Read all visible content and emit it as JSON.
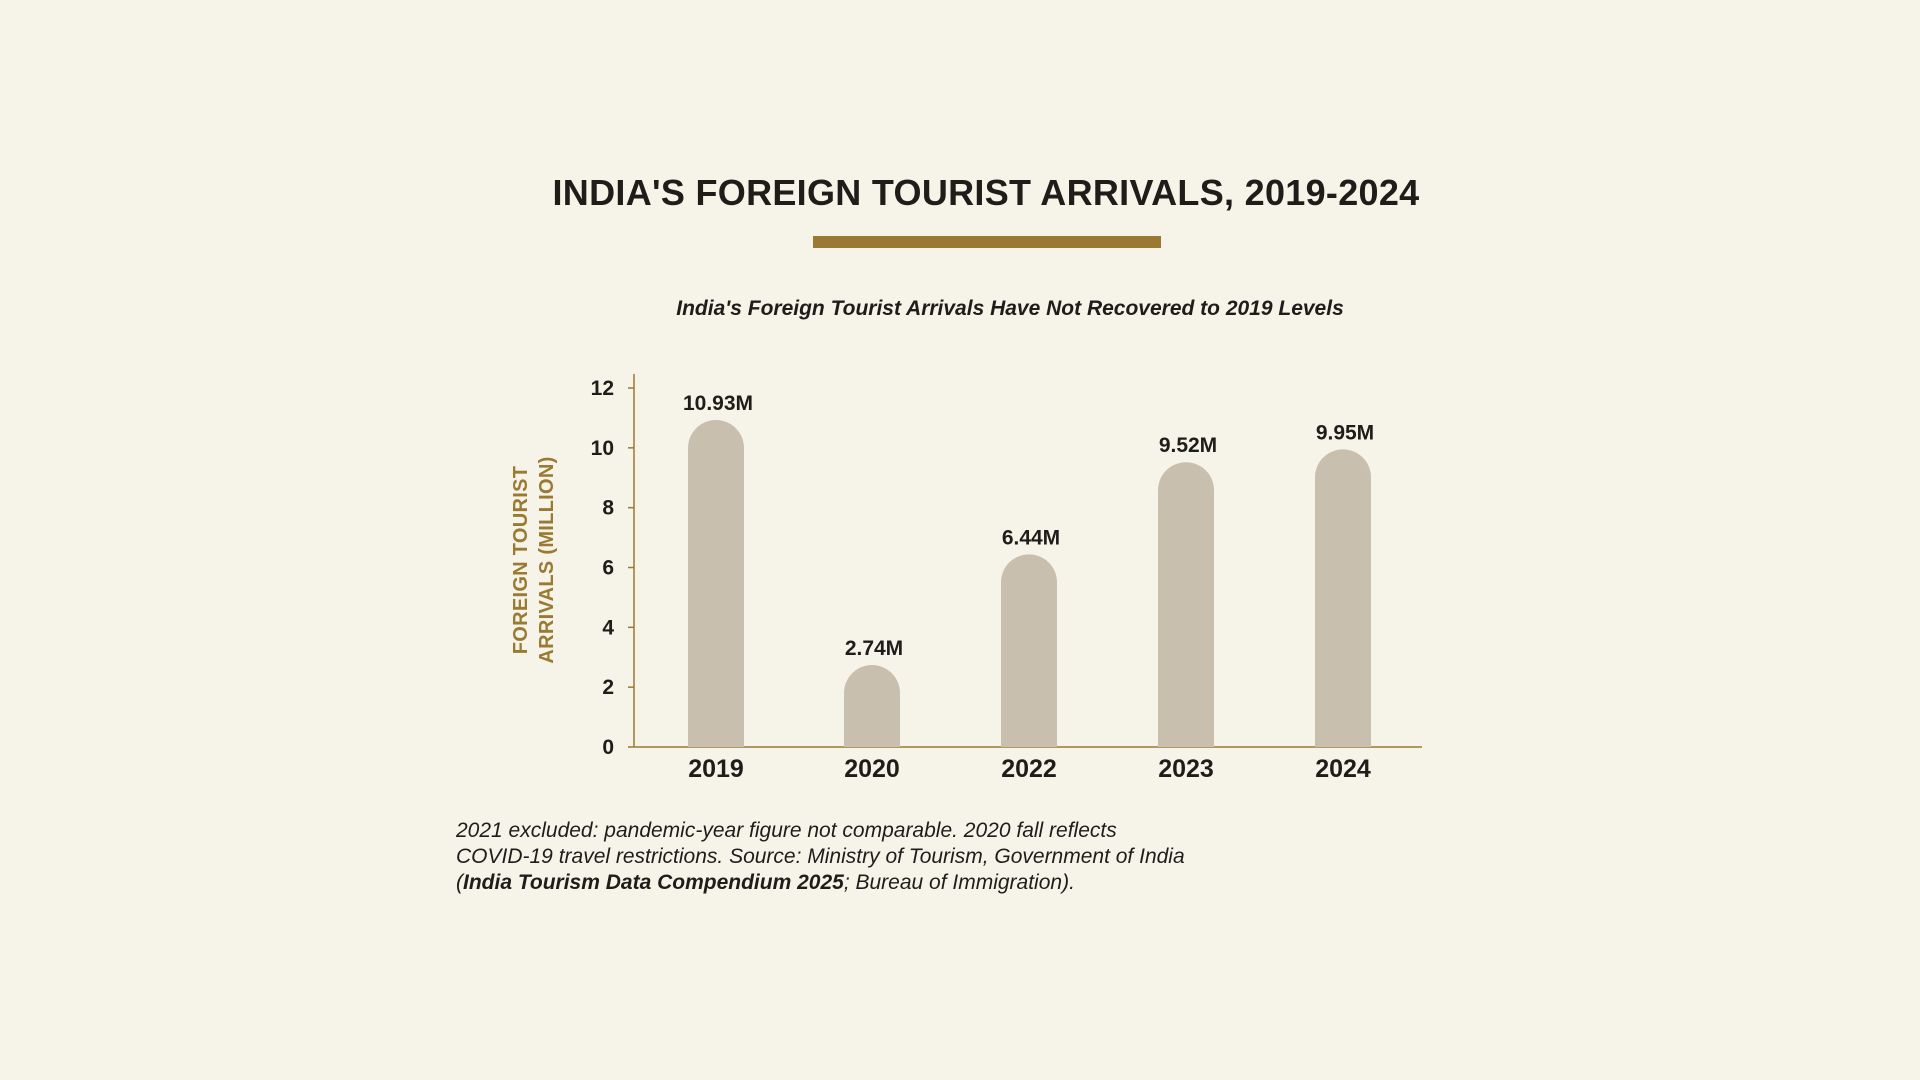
{
  "colors": {
    "background": "#f6f3e9",
    "accent": "#9a7a33",
    "bar": "#c8bfae",
    "text": "#1f1d1a"
  },
  "header": {
    "title": "INDIA'S FOREIGN TOURIST ARRIVALS, 2019-2024",
    "subtitle": "India's Foreign Tourist Arrivals Have Not Recovered to 2019 Levels"
  },
  "chart_data": {
    "type": "bar",
    "categories": [
      "2019",
      "2020",
      "2022",
      "2023",
      "2024"
    ],
    "values": [
      10.93,
      2.74,
      6.44,
      9.52,
      9.95
    ],
    "data_labels": [
      "10.93M",
      "2.74M",
      "6.44M",
      "9.52M",
      "9.95M"
    ],
    "title": "INDIA'S FOREIGN TOURIST ARRIVALS, 2019-2024",
    "subtitle": "India's Foreign Tourist Arrivals Have Not Recovered to 2019 Levels",
    "xlabel": "",
    "ylabel": "FOREIGN TOURIST ARRIVALS (MILLION)",
    "ylabel_lines": [
      "FOREIGN TOURIST",
      "ARRIVALS (MILLION)"
    ],
    "ylim": [
      0,
      12
    ],
    "yticks": [
      0,
      2,
      4,
      6,
      8,
      10,
      12
    ],
    "grid": false,
    "legend": "none"
  },
  "footnote": {
    "line1": "2021 excluded: pandemic-year figure not comparable. 2020 fall reflects",
    "line2": "COVID-19 travel restrictions. Source: Ministry of Tourism, Government of India",
    "line3_open": "(",
    "line3_bold": "India Tourism Data Compendium 2025",
    "line3_rest": "; Bureau of Immigration)."
  }
}
